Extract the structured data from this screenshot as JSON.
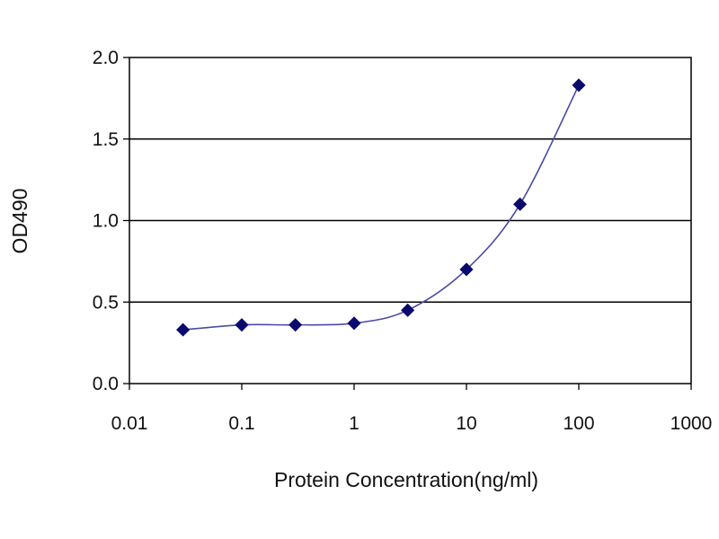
{
  "chart_data": {
    "type": "line",
    "xscale": "log",
    "xlabel": "Protein Concentration(ng/ml)",
    "ylabel": "OD490",
    "xlim": [
      0.01,
      1000
    ],
    "ylim": [
      0,
      2.0
    ],
    "xticks": [
      0.01,
      0.1,
      1,
      10,
      100,
      1000
    ],
    "xtick_labels": [
      "0.01",
      "0.1",
      "1",
      "10",
      "100",
      "1000"
    ],
    "yticks": [
      0,
      0.5,
      1.0,
      1.5,
      2.0
    ],
    "ytick_labels": [
      "0.0",
      "0.5",
      "1.0",
      "1.5",
      "2.0"
    ],
    "grid": "horizontal",
    "series": [
      {
        "x": [
          0.03,
          0.1,
          0.3,
          1,
          3,
          10,
          30,
          100
        ],
        "y": [
          0.33,
          0.36,
          0.36,
          0.37,
          0.45,
          0.7,
          1.1,
          1.83
        ],
        "marker": "diamond",
        "color": "#0a0a6e",
        "line_color": "#4a4aa8"
      }
    ]
  }
}
